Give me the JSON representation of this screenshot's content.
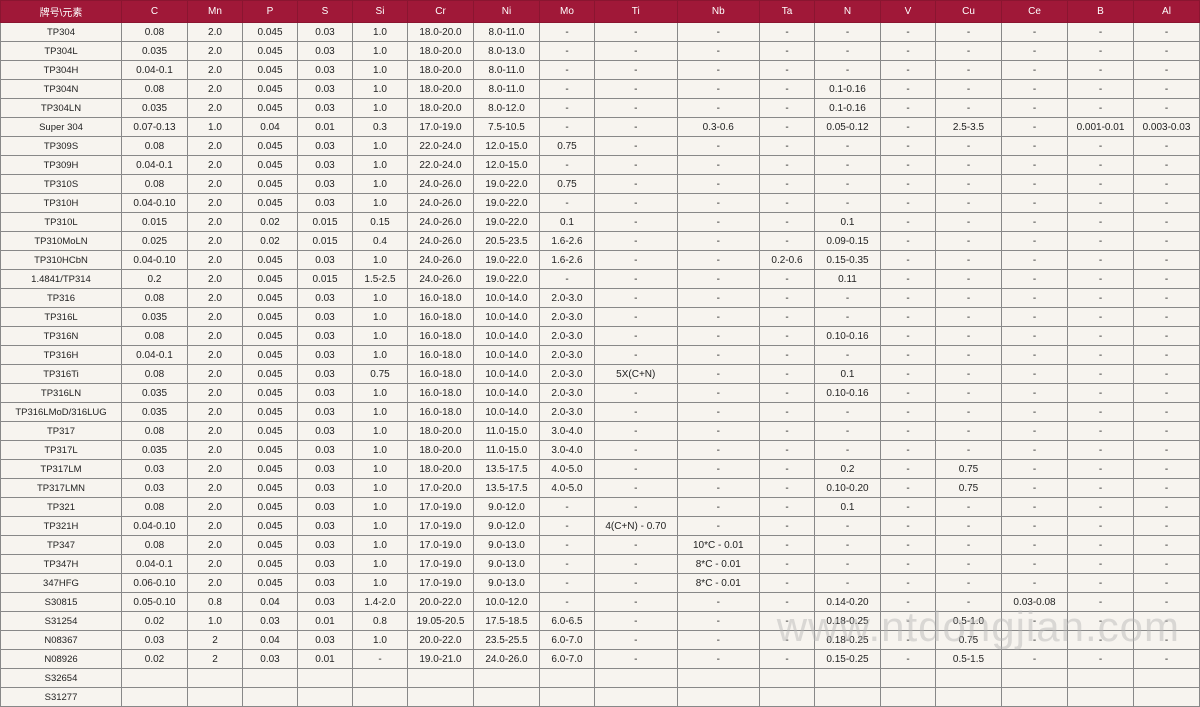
{
  "watermark": "www.ntdongjian.com",
  "table": {
    "header_bg": "#a01838",
    "header_fg": "#ffffff",
    "cell_bg": "#f7f4ef",
    "border_color": "#888888",
    "columns": [
      "牌号\\元素",
      "C",
      "Mn",
      "P",
      "S",
      "Si",
      "Cr",
      "Ni",
      "Mo",
      "Ti",
      "Nb",
      "Ta",
      "N",
      "V",
      "Cu",
      "Ce",
      "B",
      "Al"
    ],
    "col_widths": [
      "col-grade",
      "col-med",
      "col-narrow",
      "col-narrow",
      "col-narrow",
      "col-narrow",
      "col-med",
      "col-med",
      "col-narrow",
      "col-wide",
      "col-wide",
      "col-narrow",
      "col-med",
      "col-narrow",
      "col-med",
      "col-med",
      "col-med",
      "col-med"
    ],
    "rows": [
      [
        "TP304",
        "0.08",
        "2.0",
        "0.045",
        "0.03",
        "1.0",
        "18.0-20.0",
        "8.0-11.0",
        "-",
        "-",
        "-",
        "-",
        "-",
        "-",
        "-",
        "-",
        "-",
        "-"
      ],
      [
        "TP304L",
        "0.035",
        "2.0",
        "0.045",
        "0.03",
        "1.0",
        "18.0-20.0",
        "8.0-13.0",
        "-",
        "-",
        "-",
        "-",
        "-",
        "-",
        "-",
        "-",
        "-",
        "-"
      ],
      [
        "TP304H",
        "0.04-0.1",
        "2.0",
        "0.045",
        "0.03",
        "1.0",
        "18.0-20.0",
        "8.0-11.0",
        "-",
        "-",
        "-",
        "-",
        "-",
        "-",
        "-",
        "-",
        "-",
        "-"
      ],
      [
        "TP304N",
        "0.08",
        "2.0",
        "0.045",
        "0.03",
        "1.0",
        "18.0-20.0",
        "8.0-11.0",
        "-",
        "-",
        "-",
        "-",
        "0.1-0.16",
        "-",
        "-",
        "-",
        "-",
        "-"
      ],
      [
        "TP304LN",
        "0.035",
        "2.0",
        "0.045",
        "0.03",
        "1.0",
        "18.0-20.0",
        "8.0-12.0",
        "-",
        "-",
        "-",
        "-",
        "0.1-0.16",
        "-",
        "-",
        "-",
        "-",
        "-"
      ],
      [
        "Super 304",
        "0.07-0.13",
        "1.0",
        "0.04",
        "0.01",
        "0.3",
        "17.0-19.0",
        "7.5-10.5",
        "-",
        "-",
        "0.3-0.6",
        "-",
        "0.05-0.12",
        "-",
        "2.5-3.5",
        "-",
        "0.001-0.01",
        "0.003-0.03"
      ],
      [
        "TP309S",
        "0.08",
        "2.0",
        "0.045",
        "0.03",
        "1.0",
        "22.0-24.0",
        "12.0-15.0",
        "0.75",
        "-",
        "-",
        "-",
        "-",
        "-",
        "-",
        "-",
        "-",
        "-"
      ],
      [
        "TP309H",
        "0.04-0.1",
        "2.0",
        "0.045",
        "0.03",
        "1.0",
        "22.0-24.0",
        "12.0-15.0",
        "-",
        "-",
        "-",
        "-",
        "-",
        "-",
        "-",
        "-",
        "-",
        "-"
      ],
      [
        "TP310S",
        "0.08",
        "2.0",
        "0.045",
        "0.03",
        "1.0",
        "24.0-26.0",
        "19.0-22.0",
        "0.75",
        "-",
        "-",
        "-",
        "-",
        "-",
        "-",
        "-",
        "-",
        "-"
      ],
      [
        "TP310H",
        "0.04-0.10",
        "2.0",
        "0.045",
        "0.03",
        "1.0",
        "24.0-26.0",
        "19.0-22.0",
        "-",
        "-",
        "-",
        "-",
        "-",
        "-",
        "-",
        "-",
        "-",
        "-"
      ],
      [
        "TP310L",
        "0.015",
        "2.0",
        "0.02",
        "0.015",
        "0.15",
        "24.0-26.0",
        "19.0-22.0",
        "0.1",
        "-",
        "-",
        "-",
        "0.1",
        "-",
        "-",
        "-",
        "-",
        "-"
      ],
      [
        "TP310MoLN",
        "0.025",
        "2.0",
        "0.02",
        "0.015",
        "0.4",
        "24.0-26.0",
        "20.5-23.5",
        "1.6-2.6",
        "-",
        "-",
        "-",
        "0.09-0.15",
        "-",
        "-",
        "-",
        "-",
        "-"
      ],
      [
        "TP310HCbN",
        "0.04-0.10",
        "2.0",
        "0.045",
        "0.03",
        "1.0",
        "24.0-26.0",
        "19.0-22.0",
        "1.6-2.6",
        "-",
        "-",
        "0.2-0.6",
        "0.15-0.35",
        "-",
        "-",
        "-",
        "-",
        "-"
      ],
      [
        "1.4841/TP314",
        "0.2",
        "2.0",
        "0.045",
        "0.015",
        "1.5-2.5",
        "24.0-26.0",
        "19.0-22.0",
        "-",
        "-",
        "-",
        "-",
        "0.11",
        "-",
        "-",
        "-",
        "-",
        "-"
      ],
      [
        "TP316",
        "0.08",
        "2.0",
        "0.045",
        "0.03",
        "1.0",
        "16.0-18.0",
        "10.0-14.0",
        "2.0-3.0",
        "-",
        "-",
        "-",
        "-",
        "-",
        "-",
        "-",
        "-",
        "-"
      ],
      [
        "TP316L",
        "0.035",
        "2.0",
        "0.045",
        "0.03",
        "1.0",
        "16.0-18.0",
        "10.0-14.0",
        "2.0-3.0",
        "-",
        "-",
        "-",
        "-",
        "-",
        "-",
        "-",
        "-",
        "-"
      ],
      [
        "TP316N",
        "0.08",
        "2.0",
        "0.045",
        "0.03",
        "1.0",
        "16.0-18.0",
        "10.0-14.0",
        "2.0-3.0",
        "-",
        "-",
        "-",
        "0.10-0.16",
        "-",
        "-",
        "-",
        "-",
        "-"
      ],
      [
        "TP316H",
        "0.04-0.1",
        "2.0",
        "0.045",
        "0.03",
        "1.0",
        "16.0-18.0",
        "10.0-14.0",
        "2.0-3.0",
        "-",
        "-",
        "-",
        "-",
        "-",
        "-",
        "-",
        "-",
        "-"
      ],
      [
        "TP316Ti",
        "0.08",
        "2.0",
        "0.045",
        "0.03",
        "0.75",
        "16.0-18.0",
        "10.0-14.0",
        "2.0-3.0",
        "5X(C+N)",
        "-",
        "-",
        "0.1",
        "-",
        "-",
        "-",
        "-",
        "-"
      ],
      [
        "TP316LN",
        "0.035",
        "2.0",
        "0.045",
        "0.03",
        "1.0",
        "16.0-18.0",
        "10.0-14.0",
        "2.0-3.0",
        "-",
        "-",
        "-",
        "0.10-0.16",
        "-",
        "-",
        "-",
        "-",
        "-"
      ],
      [
        "TP316LMoD/316LUG",
        "0.035",
        "2.0",
        "0.045",
        "0.03",
        "1.0",
        "16.0-18.0",
        "10.0-14.0",
        "2.0-3.0",
        "-",
        "-",
        "-",
        "-",
        "-",
        "-",
        "-",
        "-",
        "-"
      ],
      [
        "TP317",
        "0.08",
        "2.0",
        "0.045",
        "0.03",
        "1.0",
        "18.0-20.0",
        "11.0-15.0",
        "3.0-4.0",
        "-",
        "-",
        "-",
        "-",
        "-",
        "-",
        "-",
        "-",
        "-"
      ],
      [
        "TP317L",
        "0.035",
        "2.0",
        "0.045",
        "0.03",
        "1.0",
        "18.0-20.0",
        "11.0-15.0",
        "3.0-4.0",
        "-",
        "-",
        "-",
        "-",
        "-",
        "-",
        "-",
        "-",
        "-"
      ],
      [
        "TP317LM",
        "0.03",
        "2.0",
        "0.045",
        "0.03",
        "1.0",
        "18.0-20.0",
        "13.5-17.5",
        "4.0-5.0",
        "-",
        "-",
        "-",
        "0.2",
        "-",
        "0.75",
        "-",
        "-",
        "-"
      ],
      [
        "TP317LMN",
        "0.03",
        "2.0",
        "0.045",
        "0.03",
        "1.0",
        "17.0-20.0",
        "13.5-17.5",
        "4.0-5.0",
        "-",
        "-",
        "-",
        "0.10-0.20",
        "-",
        "0.75",
        "-",
        "-",
        "-"
      ],
      [
        "TP321",
        "0.08",
        "2.0",
        "0.045",
        "0.03",
        "1.0",
        "17.0-19.0",
        "9.0-12.0",
        "-",
        "-",
        "-",
        "-",
        "0.1",
        "-",
        "-",
        "-",
        "-",
        "-"
      ],
      [
        "TP321H",
        "0.04-0.10",
        "2.0",
        "0.045",
        "0.03",
        "1.0",
        "17.0-19.0",
        "9.0-12.0",
        "-",
        "4(C+N) - 0.70",
        "-",
        "-",
        "-",
        "-",
        "-",
        "-",
        "-",
        "-"
      ],
      [
        "TP347",
        "0.08",
        "2.0",
        "0.045",
        "0.03",
        "1.0",
        "17.0-19.0",
        "9.0-13.0",
        "-",
        "-",
        "10*C - 0.01",
        "-",
        "-",
        "-",
        "-",
        "-",
        "-",
        "-"
      ],
      [
        "TP347H",
        "0.04-0.1",
        "2.0",
        "0.045",
        "0.03",
        "1.0",
        "17.0-19.0",
        "9.0-13.0",
        "-",
        "-",
        "8*C - 0.01",
        "-",
        "-",
        "-",
        "-",
        "-",
        "-",
        "-"
      ],
      [
        "347HFG",
        "0.06-0.10",
        "2.0",
        "0.045",
        "0.03",
        "1.0",
        "17.0-19.0",
        "9.0-13.0",
        "-",
        "-",
        "8*C - 0.01",
        "-",
        "-",
        "-",
        "-",
        "-",
        "-",
        "-"
      ],
      [
        "S30815",
        "0.05-0.10",
        "0.8",
        "0.04",
        "0.03",
        "1.4-2.0",
        "20.0-22.0",
        "10.0-12.0",
        "-",
        "-",
        "-",
        "-",
        "0.14-0.20",
        "-",
        "-",
        "0.03-0.08",
        "-",
        "-"
      ],
      [
        "S31254",
        "0.02",
        "1.0",
        "0.03",
        "0.01",
        "0.8",
        "19.05-20.5",
        "17.5-18.5",
        "6.0-6.5",
        "-",
        "-",
        "-",
        "0.18-0.25",
        "-",
        "0.5-1.0",
        "-",
        "-",
        "-"
      ],
      [
        "N08367",
        "0.03",
        "2",
        "0.04",
        "0.03",
        "1.0",
        "20.0-22.0",
        "23.5-25.5",
        "6.0-7.0",
        "-",
        "-",
        "-",
        "0.18-0.25",
        "-",
        "0.75",
        "-",
        "-",
        "-"
      ],
      [
        "N08926",
        "0.02",
        "2",
        "0.03",
        "0.01",
        "-",
        "19.0-21.0",
        "24.0-26.0",
        "6.0-7.0",
        "-",
        "-",
        "-",
        "0.15-0.25",
        "-",
        "0.5-1.5",
        "-",
        "-",
        "-"
      ],
      [
        "S32654",
        "",
        "",
        "",
        "",
        "",
        "",
        "",
        "",
        "",
        "",
        "",
        "",
        "",
        "",
        "",
        "",
        ""
      ],
      [
        "S31277",
        "",
        "",
        "",
        "",
        "",
        "",
        "",
        "",
        "",
        "",
        "",
        "",
        "",
        "",
        "",
        "",
        ""
      ]
    ]
  }
}
